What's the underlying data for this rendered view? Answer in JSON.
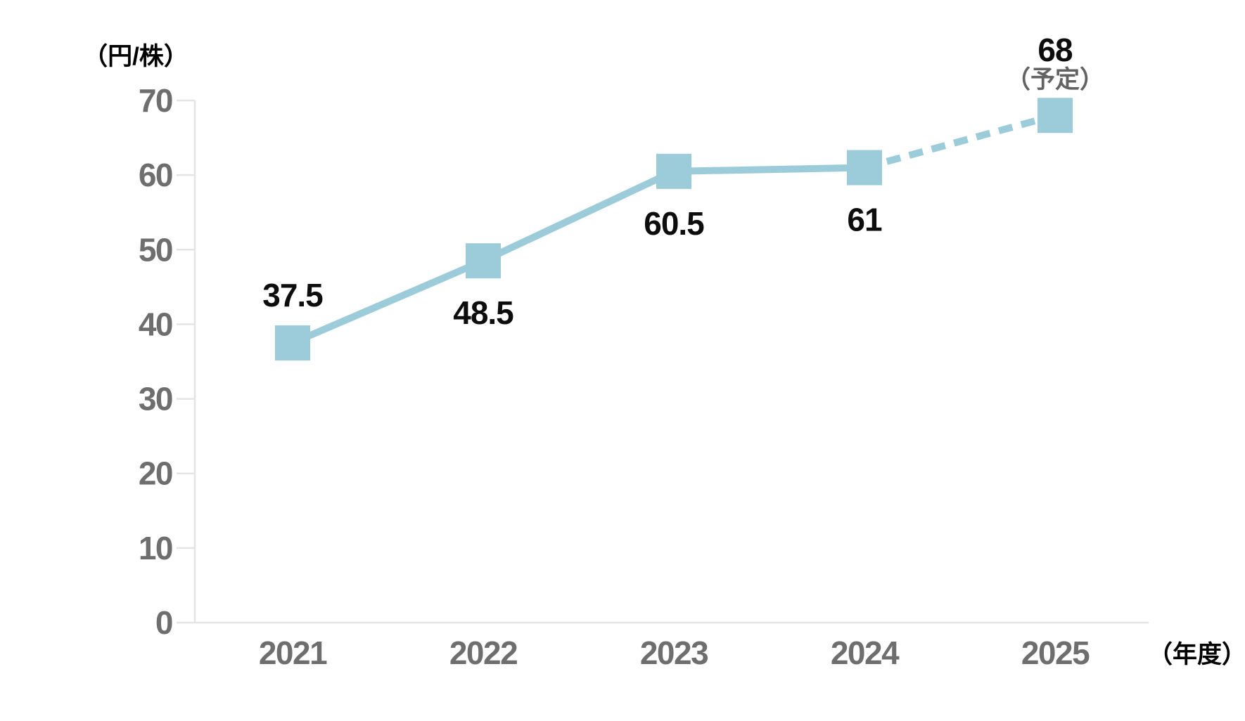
{
  "chart_data": {
    "type": "line",
    "y_unit_label": "（円/株）",
    "x_unit_label": "（年度）",
    "categories": [
      "2021",
      "2022",
      "2023",
      "2024",
      "2025"
    ],
    "values": [
      37.5,
      48.5,
      60.5,
      61,
      68
    ],
    "point_labels": [
      "37.5",
      "48.5",
      "60.5",
      "61",
      "68"
    ],
    "point_label_positions": [
      "above",
      "below",
      "below",
      "below",
      "above"
    ],
    "forecast_note": "（予定）",
    "forecast_point_index": 4,
    "dashed_segment_from_index": 3,
    "ylim": [
      0,
      70
    ],
    "ytick_step": 10,
    "ytick_labels": [
      "0",
      "10",
      "20",
      "30",
      "40",
      "50",
      "60",
      "70"
    ],
    "grid": "off",
    "legend": "none",
    "marker_shape": "square",
    "colors": {
      "series": "#9cccd9",
      "data_label": "#0d0d0d",
      "axis_text": "#6e6e6e",
      "forecast_note_text": "#636363",
      "axis_line": "#e4e4e4"
    }
  }
}
